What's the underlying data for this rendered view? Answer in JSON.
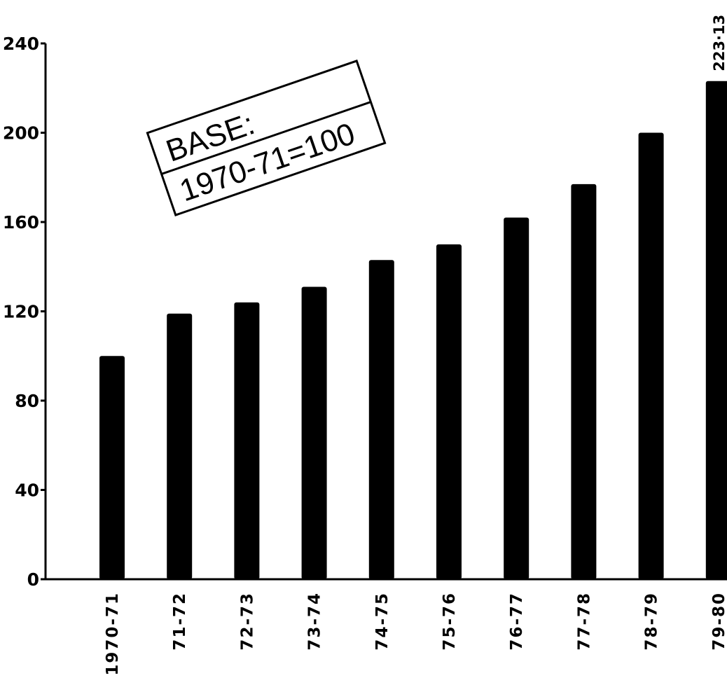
{
  "chart_data": {
    "type": "bar",
    "title": "",
    "xlabel": "",
    "ylabel": "",
    "ylim": [
      0,
      240
    ],
    "yticks": [
      0,
      40,
      80,
      120,
      160,
      200,
      240
    ],
    "grid": false,
    "categories": [
      "1970-71",
      "71-72",
      "72-73",
      "73-74",
      "74-75",
      "75-76",
      "76-77",
      "77-78",
      "78-79",
      "79-80"
    ],
    "values": [
      100,
      119,
      124,
      131,
      143,
      150,
      162,
      177,
      200,
      223.13
    ],
    "bar_color": "#000000",
    "data_labels": [
      {
        "index": 9,
        "text": "223·13"
      }
    ],
    "annotation": {
      "line1": "BASE:",
      "line2": "1970-71=100"
    }
  }
}
